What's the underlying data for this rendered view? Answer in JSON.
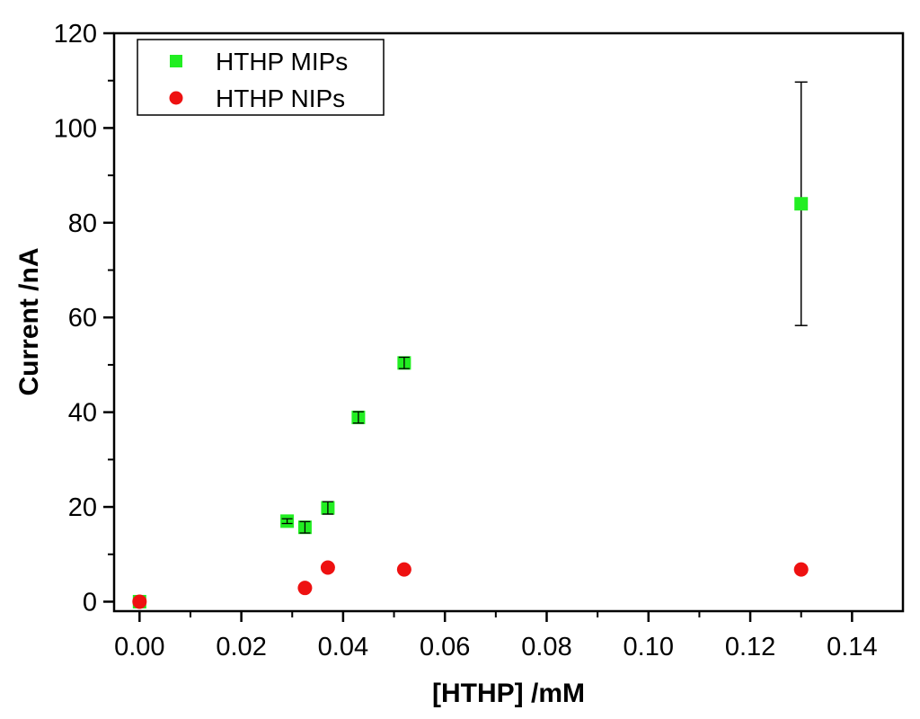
{
  "chart_data": {
    "type": "scatter",
    "xlabel": "[HTHP] /mM",
    "ylabel": "Current /nA",
    "xlim": [
      -0.005,
      0.15
    ],
    "ylim": [
      -2,
      120
    ],
    "x_ticks": [
      0.0,
      0.02,
      0.04,
      0.06,
      0.08,
      0.1,
      0.12,
      0.14
    ],
    "x_tick_labels": [
      "0.00",
      "0.02",
      "0.04",
      "0.06",
      "0.08",
      "0.10",
      "0.12",
      "0.14"
    ],
    "y_ticks": [
      0,
      20,
      40,
      60,
      80,
      100,
      120
    ],
    "y_tick_labels": [
      "0",
      "20",
      "40",
      "60",
      "80",
      "100",
      "120"
    ],
    "grid": false,
    "legend_position": "top-left",
    "series": [
      {
        "name": "HTHP MIPs",
        "marker": "square",
        "color": "#22ee22",
        "points": [
          {
            "x": 0.0,
            "y": 0.0,
            "err": 0.3
          },
          {
            "x": 0.029,
            "y": 17.0,
            "err": 0.5
          },
          {
            "x": 0.0325,
            "y": 15.7,
            "err": 1.2
          },
          {
            "x": 0.037,
            "y": 19.8,
            "err": 1.3
          },
          {
            "x": 0.043,
            "y": 38.9,
            "err": 1.2
          },
          {
            "x": 0.052,
            "y": 50.4,
            "err": 1.2
          },
          {
            "x": 0.13,
            "y": 84.0,
            "err": 25.7
          }
        ]
      },
      {
        "name": "HTHP NIPs",
        "marker": "circle",
        "color": "#ee1111",
        "points": [
          {
            "x": 0.0,
            "y": 0.0
          },
          {
            "x": 0.0325,
            "y": 2.9
          },
          {
            "x": 0.037,
            "y": 7.2
          },
          {
            "x": 0.052,
            "y": 6.8
          },
          {
            "x": 0.13,
            "y": 6.8
          }
        ]
      }
    ]
  }
}
